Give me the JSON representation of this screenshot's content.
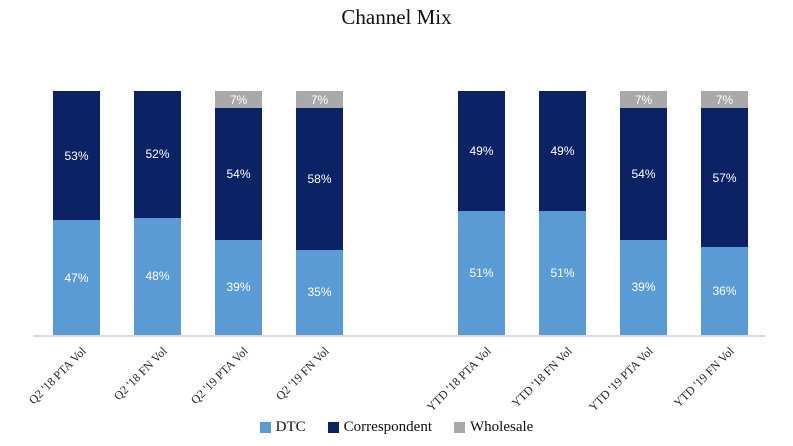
{
  "chart_data": {
    "type": "bar",
    "stacked": true,
    "title": "Channel Mix",
    "categories": [
      "Q2 '18 PTA Vol",
      "Q2 '18 FN Vol",
      "Q2 '19 PTA Vol",
      "Q2 '19 FN Vol",
      "YTD '18 PTA Vol",
      "YTD '18 FN Vol",
      "YTD '19 PTA Vol",
      "YTD '19 FN Vol"
    ],
    "series": [
      {
        "name": "DTC",
        "color": "#5B9BD5",
        "values": [
          47,
          48,
          39,
          35,
          51,
          51,
          39,
          36
        ]
      },
      {
        "name": "Correspondent",
        "color": "#0B2265",
        "values": [
          53,
          52,
          54,
          58,
          49,
          49,
          54,
          57
        ]
      },
      {
        "name": "Wholesale",
        "color": "#A9A9A9",
        "values": [
          0,
          0,
          7,
          7,
          0,
          0,
          7,
          7
        ]
      }
    ],
    "value_format": "percent",
    "data_labels": "inside, white, zero values hidden",
    "ylim": [
      0,
      100
    ],
    "grid": false,
    "y_axis_labels": false,
    "legend_position": "bottom",
    "group_break_after_index": 3,
    "axis_line_color": "#D9D9D9",
    "label_text_color": "#ffffff"
  }
}
